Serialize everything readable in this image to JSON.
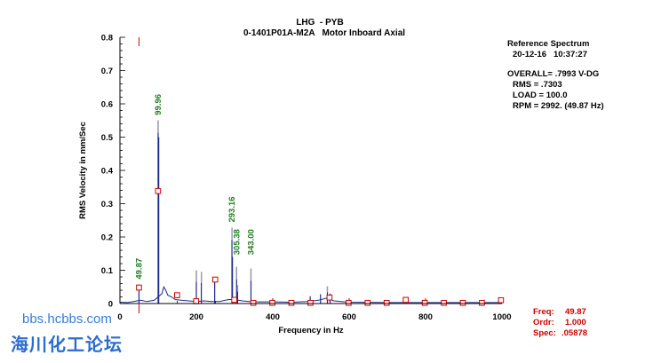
{
  "header": {
    "title_line1": "LHG  - PYB",
    "title_line2": "0-1401P01A-M2A   Motor Inboard Axial"
  },
  "info_panel": {
    "heading": "Reference Spectrum",
    "datetime": "20-12-16   10:37:27",
    "overall": "OVERALL= .7993 V-DG",
    "rms": "RMS = .7303",
    "load": "LOAD = 100.0",
    "rpm": "RPM = 2992. (49.87 Hz)"
  },
  "cursor_readout": {
    "freq_label": "Freq:",
    "freq_value": "49.87",
    "ordr_label": "Ordr:",
    "ordr_value": "1.000",
    "spec_label": "Spec:",
    "spec_value": ".05878"
  },
  "watermark": {
    "url": "bbs.hcbbs.com",
    "name": "海川化工论坛"
  },
  "colors": {
    "spectrum": "#1f2a8a",
    "peak_labels": "#1e7a1e",
    "harmonic_markers": "#d40000",
    "cursor": "#d40000",
    "axis": "#000000"
  },
  "chart_data": {
    "type": "line",
    "title": "",
    "xlabel": "Frequency in Hz",
    "ylabel": "RMS Velocity in mm/Sec",
    "xlim": [
      0,
      1000
    ],
    "ylim": [
      0,
      0.8
    ],
    "xticks": [
      "0",
      "200",
      "400",
      "600",
      "800",
      "1000"
    ],
    "yticks": [
      "0",
      "0.1",
      "0.2",
      "0.3",
      "0.4",
      "0.5",
      "0.6",
      "0.7",
      "0.8"
    ],
    "x_minor_step": 50,
    "y_minor_step": 0.02,
    "grid": false,
    "cursor_x": 49.87,
    "peak_labels": [
      {
        "x": 49.87,
        "y": 0.057,
        "text": "49.87"
      },
      {
        "x": 99.96,
        "y": 0.55,
        "text": "99.96"
      },
      {
        "x": 293.16,
        "y": 0.228,
        "text": "293.16"
      },
      {
        "x": 305.38,
        "y": 0.13,
        "text": "305.38"
      },
      {
        "x": 343.0,
        "y": 0.13,
        "text": "343.00"
      }
    ],
    "spikes": [
      {
        "x": 49.87,
        "y": 0.057,
        "tip": false
      },
      {
        "x": 99.96,
        "y": 0.55,
        "tip": true
      },
      {
        "x": 101.5,
        "y": 0.5,
        "tip": false
      },
      {
        "x": 200.0,
        "y": 0.1,
        "tip": true
      },
      {
        "x": 213.0,
        "y": 0.095,
        "tip": true
      },
      {
        "x": 248.0,
        "y": 0.075,
        "tip": false
      },
      {
        "x": 293.16,
        "y": 0.228,
        "tip": true
      },
      {
        "x": 294.5,
        "y": 0.14,
        "tip": false
      },
      {
        "x": 305.38,
        "y": 0.11,
        "tip": true
      },
      {
        "x": 308.0,
        "y": 0.055,
        "tip": true
      },
      {
        "x": 343.0,
        "y": 0.105,
        "tip": true
      },
      {
        "x": 498.0,
        "y": 0.022,
        "tip": false
      },
      {
        "x": 525.0,
        "y": 0.028,
        "tip": false
      },
      {
        "x": 543.0,
        "y": 0.052,
        "tip": true
      },
      {
        "x": 550.0,
        "y": 0.03,
        "tip": false
      }
    ],
    "baseline": [
      [
        0,
        0.004
      ],
      [
        20,
        0.003
      ],
      [
        45,
        0.008
      ],
      [
        55,
        0.01
      ],
      [
        70,
        0.006
      ],
      [
        90,
        0.01
      ],
      [
        110,
        0.03
      ],
      [
        115,
        0.05
      ],
      [
        120,
        0.04
      ],
      [
        125,
        0.025
      ],
      [
        135,
        0.02
      ],
      [
        145,
        0.012
      ],
      [
        160,
        0.01
      ],
      [
        180,
        0.008
      ],
      [
        200,
        0.006
      ],
      [
        220,
        0.008
      ],
      [
        240,
        0.006
      ],
      [
        260,
        0.006
      ],
      [
        285,
        0.012
      ],
      [
        300,
        0.012
      ],
      [
        320,
        0.008
      ],
      [
        340,
        0.006
      ],
      [
        360,
        0.005
      ],
      [
        400,
        0.005
      ],
      [
        450,
        0.004
      ],
      [
        490,
        0.006
      ],
      [
        520,
        0.01
      ],
      [
        540,
        0.016
      ],
      [
        560,
        0.008
      ],
      [
        600,
        0.004
      ],
      [
        700,
        0.003
      ],
      [
        800,
        0.003
      ],
      [
        900,
        0.003
      ],
      [
        1000,
        0.003
      ]
    ],
    "harmonic_markers": [
      {
        "x": 49.87,
        "y": 0.048
      },
      {
        "x": 99.74,
        "y": 0.338
      },
      {
        "x": 149.61,
        "y": 0.025
      },
      {
        "x": 199.48,
        "y": 0.007
      },
      {
        "x": 249.35,
        "y": 0.072
      },
      {
        "x": 299.22,
        "y": 0.011
      },
      {
        "x": 349.09,
        "y": 0.002
      },
      {
        "x": 398.96,
        "y": 0.002
      },
      {
        "x": 448.83,
        "y": 0.002
      },
      {
        "x": 498.7,
        "y": 0.002
      },
      {
        "x": 548.57,
        "y": 0.018
      },
      {
        "x": 598.44,
        "y": 0.002
      },
      {
        "x": 648.31,
        "y": 0.002
      },
      {
        "x": 698.18,
        "y": 0.002
      },
      {
        "x": 748.05,
        "y": 0.011
      },
      {
        "x": 797.92,
        "y": 0.002
      },
      {
        "x": 847.79,
        "y": 0.002
      },
      {
        "x": 897.66,
        "y": 0.002
      },
      {
        "x": 947.53,
        "y": 0.002
      },
      {
        "x": 997.4,
        "y": 0.01
      }
    ]
  }
}
